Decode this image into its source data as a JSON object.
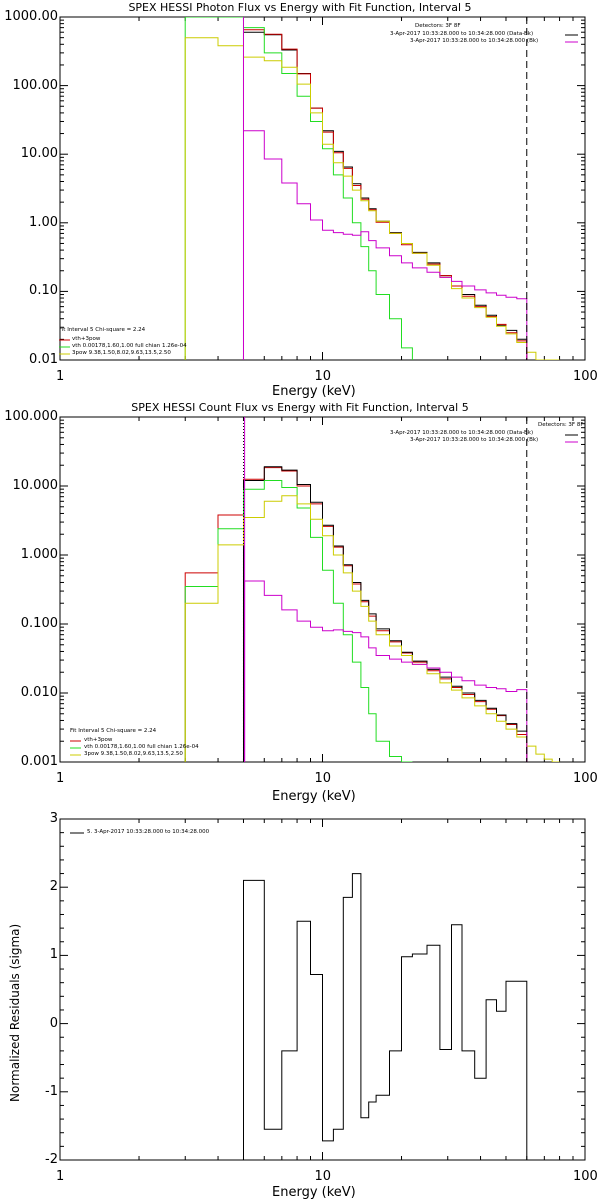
{
  "chart_data": [
    {
      "type": "line",
      "title": "SPEX HESSI Photon Flux vs Energy with Fit Function, Interval 5",
      "xlabel": "Energy (keV)",
      "ylabel": "",
      "x_scale": "log",
      "y_scale": "log",
      "xlim": [
        1,
        100
      ],
      "ylim": [
        0.01,
        1000
      ],
      "x_ticks": [
        "1",
        "10",
        "100"
      ],
      "y_ticks": [
        "0.01",
        "0.10",
        "1.00",
        "10.00",
        "100.00",
        "1000.00"
      ],
      "vlines": [
        {
          "x": 5.0,
          "style": "solid",
          "color": "#cc00cc"
        },
        {
          "x": 60,
          "style": "dashed",
          "color": "#000000"
        }
      ],
      "legend_right": {
        "header": "Detectors: 3F 8F",
        "entries": [
          {
            "text": "3-Apr-2017 10:33:28.000 to 10:34:28.000 (Data-Bk)",
            "color": "#000000"
          },
          {
            "text": "3-Apr-2017 10:33:28.000 to 10:34:28.000 (Bk)",
            "color": "#cc00cc"
          }
        ]
      },
      "legend_left": {
        "header": "Fit Interval 5   Chi-square = 2.24",
        "entries": [
          {
            "text": "vth+3pow",
            "color": "#cc0000"
          },
          {
            "text": "vth 0.00178,1.60,1.00  full chian 1.26e-04",
            "color": "#22dd22"
          },
          {
            "text": "3pow 9.38,1.50,8.02,9.63,13.5,2.50",
            "color": "#cccc00"
          }
        ]
      },
      "series": [
        {
          "color": "#000000",
          "edges": [
            5.0,
            6.0,
            7.0,
            8.0,
            9.0,
            10.0,
            11.0,
            12.0,
            13.0,
            14.0,
            15.0,
            16.0,
            18.0,
            20.0,
            22.0,
            25.0,
            28.0,
            31.0,
            34.0,
            38.0,
            42.0,
            46.0,
            50.0,
            55.0,
            60.0
          ],
          "values": [
            600,
            550,
            330,
            150,
            47,
            22,
            11,
            6.5,
            3.7,
            2.3,
            1.6,
            1.05,
            0.72,
            0.5,
            0.37,
            0.26,
            0.17,
            0.12,
            0.09,
            0.063,
            0.045,
            0.032,
            0.027,
            0.02
          ]
        },
        {
          "color": "#cc0000",
          "edges": [
            5.0,
            6.0,
            7.0,
            8.0,
            9.0,
            10.0,
            11.0,
            12.0,
            13.0,
            14.0,
            15.0,
            16.0,
            18.0,
            20.0,
            22.0,
            25.0,
            28.0,
            31.0,
            34.0,
            38.0,
            42.0,
            46.0,
            50.0,
            55.0,
            60.0
          ],
          "values": [
            650,
            560,
            340,
            148,
            47,
            21,
            10.5,
            6.2,
            3.5,
            2.2,
            1.55,
            1.02,
            0.7,
            0.48,
            0.36,
            0.25,
            0.17,
            0.12,
            0.085,
            0.06,
            0.043,
            0.033,
            0.025,
            0.019
          ]
        },
        {
          "color": "#22dd22",
          "edges": [
            3.0,
            4.0,
            5.0,
            6.0,
            7.0,
            8.0,
            9.0,
            10.0,
            11.0,
            12.0,
            13.0,
            14.0,
            15.0,
            16.0,
            18.0,
            20.0,
            22.0
          ],
          "values": [
            1000,
            1000,
            700,
            300,
            150,
            70,
            30,
            12,
            5.0,
            2.3,
            1.0,
            0.45,
            0.2,
            0.09,
            0.04,
            0.015,
            0.008
          ]
        },
        {
          "color": "#cccc00",
          "edges": [
            3.0,
            4.0,
            5.0,
            6.0,
            7.0,
            8.0,
            9.0,
            10.0,
            11.0,
            12.0,
            13.0,
            14.0,
            15.0,
            16.0,
            18.0,
            20.0,
            22.0,
            25.0,
            28.0,
            31.0,
            34.0,
            38.0,
            42.0,
            46.0,
            50.0,
            55.0,
            60.0,
            65.0,
            70.0,
            75.0,
            80.0
          ],
          "values": [
            500,
            380,
            260,
            230,
            185,
            105,
            40,
            14,
            7.5,
            4.8,
            3.0,
            2.1,
            1.5,
            1.05,
            0.7,
            0.5,
            0.36,
            0.24,
            0.16,
            0.11,
            0.08,
            0.058,
            0.042,
            0.031,
            0.024,
            0.018,
            0.013,
            0.01,
            0.008,
            0.006
          ]
        },
        {
          "color": "#cc00cc",
          "edges": [
            5.0,
            6.0,
            7.0,
            8.0,
            9.0,
            10.0,
            11.0,
            12.0,
            13.0,
            14.0,
            15.0,
            16.0,
            18.0,
            20.0,
            22.0,
            25.0,
            28.0,
            31.0,
            34.0,
            38.0,
            42.0,
            46.0,
            50.0,
            55.0,
            60.0
          ],
          "values": [
            22,
            8.5,
            3.8,
            1.9,
            1.1,
            0.78,
            0.72,
            0.68,
            0.66,
            0.74,
            0.55,
            0.43,
            0.33,
            0.26,
            0.22,
            0.19,
            0.16,
            0.14,
            0.12,
            0.105,
            0.095,
            0.088,
            0.082,
            0.078
          ]
        }
      ]
    },
    {
      "type": "line",
      "title": "SPEX HESSI Count Flux vs Energy with Fit Function, Interval 5",
      "xlabel": "Energy (keV)",
      "ylabel": "",
      "x_scale": "log",
      "y_scale": "log",
      "xlim": [
        1,
        100
      ],
      "ylim": [
        0.001,
        100
      ],
      "x_ticks": [
        "1",
        "10",
        "100"
      ],
      "y_ticks": [
        "0.001",
        "0.010",
        "0.100",
        "1.000",
        "10.000",
        "100.000"
      ],
      "vlines": [
        {
          "x": 5.0,
          "style": "dotted",
          "color": "#000000"
        },
        {
          "x": 5.05,
          "style": "solid",
          "color": "#cc00cc"
        },
        {
          "x": 60,
          "style": "dashed",
          "color": "#000000"
        }
      ],
      "legend_right": {
        "header": "Detectors: 3F 8F",
        "entries": [
          {
            "text": "3-Apr-2017 10:33:28.000 to 10:34:28.000 (Data-Bk)",
            "color": "#000000"
          },
          {
            "text": "3-Apr-2017 10:33:28.000 to 10:34:28.000 (Bk)",
            "color": "#cc00cc"
          }
        ]
      },
      "legend_left": {
        "header": "Fit Interval 5   Chi-square = 2.24",
        "entries": [
          {
            "text": "vth+3pow",
            "color": "#cc0000"
          },
          {
            "text": "vth 0.00178,1.60,1.00  full chian 1.26e-04",
            "color": "#22dd22"
          },
          {
            "text": "3pow 9.38,1.50,8.02,9.63,13.5,2.50",
            "color": "#cccc00"
          }
        ]
      },
      "series": [
        {
          "color": "#cc0000",
          "edges": [
            3.0,
            4.0,
            5.0,
            6.0,
            7.0,
            8.0,
            9.0,
            10.0,
            11.0,
            12.0,
            13.0,
            14.0,
            15.0,
            16.0,
            18.0,
            20.0,
            22.0,
            25.0,
            28.0,
            31.0,
            34.0,
            38.0,
            42.0,
            46.0,
            50.0,
            55.0,
            60.0
          ],
          "values": [
            0.55,
            3.8,
            12.5,
            18.5,
            16.5,
            10.0,
            5.5,
            2.6,
            1.3,
            0.7,
            0.38,
            0.21,
            0.13,
            0.08,
            0.055,
            0.038,
            0.028,
            0.021,
            0.016,
            0.012,
            0.0095,
            0.0075,
            0.0058,
            0.0047,
            0.0035,
            0.0025
          ]
        },
        {
          "color": "#000000",
          "edges": [
            5.0,
            6.0,
            7.0,
            8.0,
            9.0,
            10.0,
            11.0,
            12.0,
            13.0,
            14.0,
            15.0,
            16.0,
            18.0,
            20.0,
            22.0,
            25.0,
            28.0,
            31.0,
            34.0,
            38.0,
            42.0,
            46.0,
            50.0,
            55.0,
            60.0
          ],
          "values": [
            12.0,
            19.0,
            17.0,
            10.5,
            5.8,
            2.7,
            1.35,
            0.72,
            0.4,
            0.22,
            0.14,
            0.085,
            0.057,
            0.039,
            0.029,
            0.022,
            0.017,
            0.0125,
            0.01,
            0.0078,
            0.006,
            0.0048,
            0.0036,
            0.0028
          ]
        },
        {
          "color": "#22dd22",
          "edges": [
            3.0,
            4.0,
            5.0,
            6.0,
            7.0,
            8.0,
            9.0,
            10.0,
            11.0,
            12.0,
            13.0,
            14.0,
            15.0,
            16.0,
            18.0,
            20.0,
            22.0
          ],
          "values": [
            0.35,
            2.4,
            9.0,
            12.0,
            9.5,
            4.8,
            1.8,
            0.6,
            0.2,
            0.07,
            0.028,
            0.012,
            0.005,
            0.002,
            0.0012,
            0.0006
          ]
        },
        {
          "color": "#cccc00",
          "edges": [
            3.0,
            4.0,
            5.0,
            6.0,
            7.0,
            8.0,
            9.0,
            10.0,
            11.0,
            12.0,
            13.0,
            14.0,
            15.0,
            16.0,
            18.0,
            20.0,
            22.0,
            25.0,
            28.0,
            31.0,
            34.0,
            38.0,
            42.0,
            46.0,
            50.0,
            55.0,
            60.0,
            65.0,
            70.0,
            75.0,
            80.0
          ],
          "values": [
            0.2,
            1.4,
            3.5,
            6.0,
            7.2,
            5.5,
            3.3,
            1.9,
            1.0,
            0.55,
            0.3,
            0.18,
            0.11,
            0.07,
            0.048,
            0.035,
            0.026,
            0.019,
            0.014,
            0.011,
            0.0085,
            0.0065,
            0.005,
            0.0039,
            0.003,
            0.0023,
            0.0017,
            0.0013,
            0.0011,
            0.001
          ]
        },
        {
          "color": "#cc00cc",
          "edges": [
            5.05,
            6.0,
            7.0,
            8.0,
            9.0,
            10.0,
            11.0,
            12.0,
            13.0,
            14.0,
            15.0,
            16.0,
            18.0,
            20.0,
            22.0,
            25.0,
            28.0,
            31.0,
            34.0,
            38.0,
            42.0,
            46.0,
            50.0,
            55.0,
            60.0
          ],
          "values": [
            0.42,
            0.26,
            0.16,
            0.11,
            0.09,
            0.08,
            0.082,
            0.078,
            0.075,
            0.065,
            0.045,
            0.035,
            0.031,
            0.028,
            0.026,
            0.023,
            0.02,
            0.017,
            0.015,
            0.013,
            0.012,
            0.0115,
            0.0105,
            0.0112
          ]
        }
      ]
    },
    {
      "type": "line",
      "title": "",
      "xlabel": "Energy (keV)",
      "ylabel": "Normalized Residuals (sigma)",
      "x_scale": "log",
      "y_scale": "linear",
      "xlim": [
        1,
        100
      ],
      "ylim": [
        -2,
        3
      ],
      "x_ticks": [
        "1",
        "10",
        "100"
      ],
      "y_ticks": [
        "-2",
        "-1",
        "0",
        "1",
        "2",
        "3"
      ],
      "legend": {
        "entries": [
          {
            "text": "5. 3-Apr-2017 10:33:28.000 to 10:34:28.000",
            "color": "#000000"
          }
        ]
      },
      "series": [
        {
          "color": "#000000",
          "edges": [
            5.0,
            6.0,
            7.0,
            8.0,
            9.0,
            10.0,
            11.0,
            12.0,
            13.0,
            14.0,
            15.0,
            16.0,
            18.0,
            20.0,
            22.0,
            25.0,
            28.0,
            31.0,
            34.0,
            38.0,
            42.0,
            46.0,
            50.0,
            55.0,
            60.0
          ],
          "values": [
            2.1,
            -1.55,
            -0.4,
            1.5,
            0.72,
            -1.72,
            -1.55,
            1.85,
            2.2,
            -1.38,
            -1.15,
            -1.05,
            -0.4,
            0.98,
            1.02,
            1.15,
            -0.38,
            1.45,
            -0.4,
            -0.8,
            0.35,
            0.18,
            0.62,
            0.62
          ]
        }
      ]
    }
  ]
}
